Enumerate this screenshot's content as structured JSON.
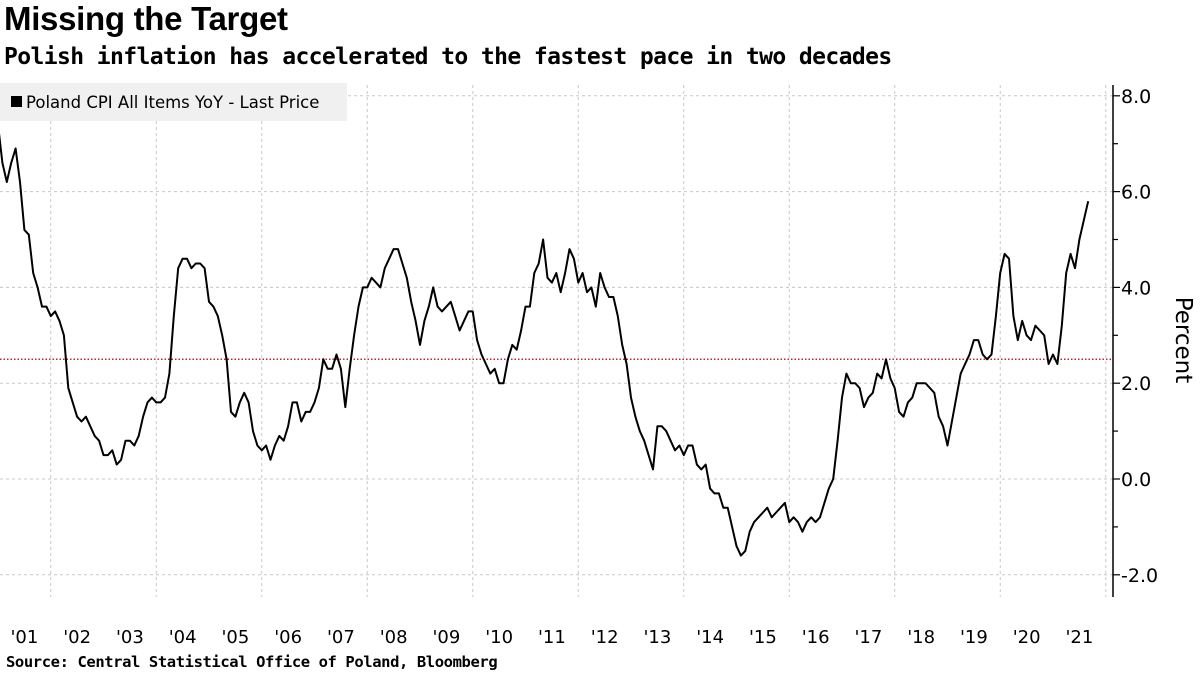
{
  "title": "Missing the Target",
  "subtitle": "Polish inflation has accelerated to the fastest pace in two decades",
  "source": "Source: Central Statistical Office of Poland, Bloomberg",
  "chart_data": {
    "type": "line",
    "title": "Missing the Target",
    "subtitle": "Polish inflation has accelerated to the fastest pace in two decades",
    "ylabel": "Percent",
    "ylim": [
      -2.5,
      8.2
    ],
    "y_ticks": [
      "8.0",
      "6.0",
      "4.0",
      "2.0",
      "0.0",
      "-2.0"
    ],
    "y_tick_values": [
      8,
      6,
      4,
      2,
      0,
      -2
    ],
    "x_tick_labels": [
      "'01",
      "'02",
      "'03",
      "'04",
      "'05",
      "'06",
      "'07",
      "'08",
      "'09",
      "'10",
      "'11",
      "'12",
      "'13",
      "'14",
      "'15",
      "'16",
      "'17",
      "'18",
      "'19",
      "'20",
      "'21"
    ],
    "x_start": "2001-01",
    "x_frequency": "monthly",
    "grid": true,
    "legend_position": "top-left",
    "reference_line": {
      "value": 2.5,
      "color": "#e8102a",
      "style": "dotted"
    },
    "series": [
      {
        "name": "Poland CPI All Items YoY - Last Price",
        "color": "#000000",
        "values": [
          7.4,
          6.6,
          6.2,
          6.6,
          6.9,
          6.2,
          5.2,
          5.1,
          4.3,
          4.0,
          3.6,
          3.6,
          3.4,
          3.5,
          3.3,
          3.0,
          1.9,
          1.6,
          1.3,
          1.2,
          1.3,
          1.1,
          0.9,
          0.8,
          0.5,
          0.5,
          0.6,
          0.3,
          0.4,
          0.8,
          0.8,
          0.7,
          0.9,
          1.3,
          1.6,
          1.7,
          1.6,
          1.6,
          1.7,
          2.2,
          3.4,
          4.4,
          4.6,
          4.6,
          4.4,
          4.5,
          4.5,
          4.4,
          3.7,
          3.6,
          3.4,
          3.0,
          2.5,
          1.4,
          1.3,
          1.6,
          1.8,
          1.6,
          1.0,
          0.7,
          0.6,
          0.7,
          0.4,
          0.7,
          0.9,
          0.8,
          1.1,
          1.6,
          1.6,
          1.2,
          1.4,
          1.4,
          1.6,
          1.9,
          2.5,
          2.3,
          2.3,
          2.6,
          2.3,
          1.5,
          2.3,
          3.0,
          3.6,
          4.0,
          4.0,
          4.2,
          4.1,
          4.0,
          4.4,
          4.6,
          4.8,
          4.8,
          4.5,
          4.2,
          3.7,
          3.3,
          2.8,
          3.3,
          3.6,
          4.0,
          3.6,
          3.5,
          3.6,
          3.7,
          3.4,
          3.1,
          3.3,
          3.5,
          3.5,
          2.9,
          2.6,
          2.4,
          2.2,
          2.3,
          2.0,
          2.0,
          2.5,
          2.8,
          2.7,
          3.1,
          3.6,
          3.6,
          4.3,
          4.5,
          5.0,
          4.2,
          4.1,
          4.3,
          3.9,
          4.3,
          4.8,
          4.6,
          4.1,
          4.3,
          3.9,
          4.0,
          3.6,
          4.3,
          4.0,
          3.8,
          3.8,
          3.4,
          2.8,
          2.4,
          1.7,
          1.3,
          1.0,
          0.8,
          0.5,
          0.2,
          1.1,
          1.1,
          1.0,
          0.8,
          0.6,
          0.7,
          0.5,
          0.7,
          0.7,
          0.3,
          0.2,
          0.3,
          -0.2,
          -0.3,
          -0.3,
          -0.6,
          -0.6,
          -1.0,
          -1.4,
          -1.6,
          -1.5,
          -1.1,
          -0.9,
          -0.8,
          -0.7,
          -0.6,
          -0.8,
          -0.7,
          -0.6,
          -0.5,
          -0.9,
          -0.8,
          -0.9,
          -1.1,
          -0.9,
          -0.8,
          -0.9,
          -0.8,
          -0.5,
          -0.2,
          0.0,
          0.8,
          1.7,
          2.2,
          2.0,
          2.0,
          1.9,
          1.5,
          1.7,
          1.8,
          2.2,
          2.1,
          2.5,
          2.1,
          1.9,
          1.4,
          1.3,
          1.6,
          1.7,
          2.0,
          2.0,
          2.0,
          1.9,
          1.8,
          1.3,
          1.1,
          0.7,
          1.2,
          1.7,
          2.2,
          2.4,
          2.6,
          2.9,
          2.9,
          2.6,
          2.5,
          2.6,
          3.4,
          4.3,
          4.7,
          4.6,
          3.4,
          2.9,
          3.3,
          3.0,
          2.9,
          3.2,
          3.1,
          3.0,
          2.4,
          2.6,
          2.4,
          3.2,
          4.3,
          4.7,
          4.4,
          5.0,
          5.4,
          5.8
        ]
      }
    ]
  }
}
